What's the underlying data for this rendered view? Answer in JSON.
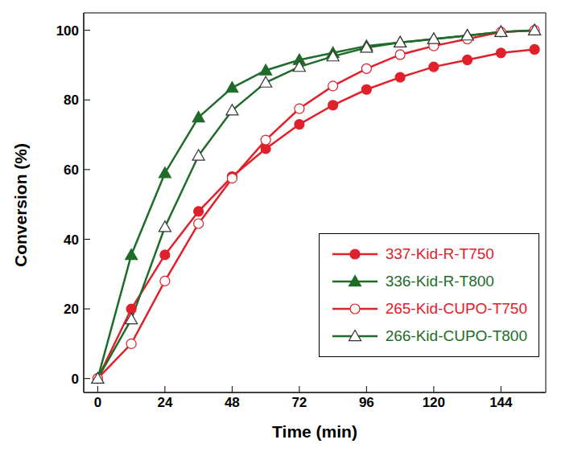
{
  "chart_data": {
    "type": "line",
    "x_label": "Time (min)",
    "y_label": "Conversion (%)",
    "x": [
      0,
      12,
      24,
      36,
      48,
      60,
      72,
      84,
      96,
      108,
      120,
      132,
      144,
      156
    ],
    "xlim": [
      -5,
      160
    ],
    "xticks": [
      0,
      24,
      48,
      72,
      96,
      120,
      144
    ],
    "ylim": [
      -4,
      105
    ],
    "yticks": [
      0,
      20,
      40,
      60,
      80,
      100
    ],
    "grid": false,
    "legend": "lower right",
    "series": [
      {
        "name": "337-Kid-R-T750",
        "color": "#e0202a",
        "marker": "circle",
        "values": [
          0,
          20,
          35.5,
          48,
          58,
          66,
          73,
          78.5,
          83,
          86.5,
          89.5,
          91.5,
          93.5,
          94.5
        ]
      },
      {
        "name": "336-Kid-R-T800",
        "color": "#1f6b2a",
        "marker": "triangle",
        "values": [
          0,
          35.5,
          59,
          75,
          83.5,
          88.5,
          91.5,
          93.5,
          95.5,
          96.5,
          97.5,
          98.5,
          99.5,
          100
        ]
      },
      {
        "name": "265-Kid-CUPO-T750",
        "color": "#e0202a",
        "marker": "circle_open",
        "values": [
          0,
          10,
          28,
          44.5,
          57.5,
          68.5,
          77.5,
          84,
          89,
          93,
          95.5,
          97.5,
          99.5,
          100
        ]
      },
      {
        "name": "266-Kid-CUPO-T800",
        "color": "#1f6b2a",
        "marker": "triangle_open",
        "values": [
          0,
          17,
          43.5,
          64,
          77,
          85,
          89.5,
          92.5,
          95,
          96.5,
          97.5,
          98.5,
          99.5,
          100
        ]
      }
    ]
  }
}
